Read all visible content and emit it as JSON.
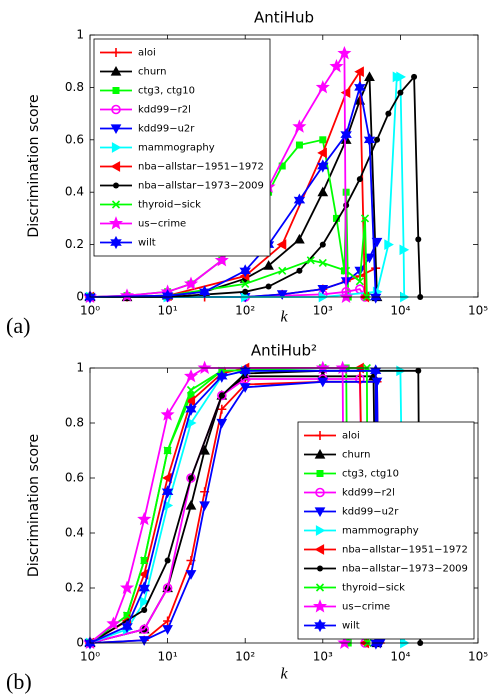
{
  "chart_data": [
    {
      "type": "line",
      "title": "AntiHub",
      "panel_label": "(a)",
      "xlabel": "k",
      "ylabel": "Discrimination score",
      "xlog": true,
      "xlim": [
        1,
        100000
      ],
      "xticks": [
        {
          "value": 1,
          "label": "10⁰"
        },
        {
          "value": 10,
          "label": "10¹"
        },
        {
          "value": 100,
          "label": "10²"
        },
        {
          "value": 1000,
          "label": "10³"
        },
        {
          "value": 10000,
          "label": "10⁴"
        },
        {
          "value": 100000,
          "label": "10⁵"
        }
      ],
      "ylim": [
        0,
        1
      ],
      "yticks": [
        0,
        0.2,
        0.4,
        0.6,
        0.8,
        1
      ],
      "legend": "upper-left",
      "series": [
        {
          "name": "aloi",
          "color": "#ff0000",
          "marker": "plus",
          "x": [
            1,
            3,
            10,
            30,
            100,
            300,
            1000,
            2000,
            3000,
            4800
          ],
          "values": [
            0,
            0,
            0,
            0,
            0,
            0.01,
            0.03,
            0.06,
            0.08,
            0.11
          ]
        },
        {
          "name": "churn",
          "color": "#000000",
          "marker": "triangle",
          "x": [
            1,
            3,
            10,
            30,
            100,
            200,
            500,
            1000,
            2000,
            3000,
            4000,
            5000
          ],
          "values": [
            0,
            0,
            0.005,
            0.02,
            0.07,
            0.12,
            0.22,
            0.4,
            0.6,
            0.75,
            0.84,
            0
          ]
        },
        {
          "name": "ctg3, ctg10",
          "color": "#00ff00",
          "marker": "square",
          "x": [
            1,
            3,
            10,
            20,
            50,
            100,
            200,
            300,
            500,
            1000,
            1500,
            1900,
            2000,
            2126
          ],
          "values": [
            0,
            0.005,
            0.02,
            0.05,
            0.14,
            0.26,
            0.4,
            0.5,
            0.58,
            0.6,
            0.3,
            0.1,
            0.4,
            0
          ]
        },
        {
          "name": "kdd99−r2l",
          "color": "#ff00ff",
          "marker": "circle",
          "x": [
            1,
            10,
            100,
            1000,
            2000,
            3000,
            3500
          ],
          "values": [
            0,
            0,
            0,
            0.01,
            0.02,
            0.03,
            0
          ]
        },
        {
          "name": "kdd99−u2r",
          "color": "#0000ff",
          "marker": "triangle-down",
          "x": [
            1,
            10,
            100,
            300,
            1000,
            2000,
            3000,
            4000,
            5000
          ],
          "values": [
            0,
            0,
            0,
            0.01,
            0.03,
            0.06,
            0.1,
            0.15,
            0.21
          ]
        },
        {
          "name": "mammography",
          "color": "#00ffff",
          "marker": "triangle-right",
          "x": [
            1,
            10,
            100,
            1000,
            5000,
            7000,
            9000,
            10000,
            11000,
            11183
          ],
          "values": [
            0,
            0,
            0,
            0,
            0.02,
            0.2,
            0.84,
            0.84,
            0.18,
            0
          ]
        },
        {
          "name": "nba−allstar−1951−1972",
          "color": "#ff0000",
          "marker": "triangle-left",
          "x": [
            1,
            10,
            100,
            300,
            1000,
            2000,
            3000,
            3500
          ],
          "values": [
            0,
            0.005,
            0.08,
            0.2,
            0.55,
            0.78,
            0.86,
            0
          ]
        },
        {
          "name": "nba−allstar−1973−2009",
          "color": "#000000",
          "marker": "dot",
          "x": [
            1,
            10,
            100,
            200,
            500,
            1000,
            2000,
            3000,
            5000,
            7000,
            10000,
            15000,
            17000,
            18000
          ],
          "values": [
            0,
            0,
            0.02,
            0.04,
            0.1,
            0.2,
            0.35,
            0.45,
            0.6,
            0.7,
            0.78,
            0.84,
            0.22,
            0
          ]
        },
        {
          "name": "thyroid−sick",
          "color": "#00ff00",
          "marker": "x",
          "x": [
            1,
            10,
            100,
            300,
            700,
            1000,
            2000,
            3000,
            3500,
            3700
          ],
          "values": [
            0,
            0.005,
            0.05,
            0.1,
            0.14,
            0.13,
            0.1,
            0.06,
            0.3,
            0
          ]
        },
        {
          "name": "us−crime",
          "color": "#ff00ff",
          "marker": "star",
          "x": [
            1,
            3,
            10,
            20,
            50,
            100,
            200,
            500,
            1000,
            1500,
            1900,
            1994
          ],
          "values": [
            0,
            0.005,
            0.02,
            0.05,
            0.14,
            0.26,
            0.42,
            0.65,
            0.8,
            0.88,
            0.93,
            0
          ]
        },
        {
          "name": "wilt",
          "color": "#0000ff",
          "marker": "hexagram",
          "x": [
            1,
            10,
            30,
            100,
            200,
            500,
            1000,
            2000,
            3000,
            4000,
            4800
          ],
          "values": [
            0,
            0.005,
            0.02,
            0.1,
            0.2,
            0.37,
            0.5,
            0.62,
            0.8,
            0.6,
            0
          ]
        }
      ]
    },
    {
      "type": "line",
      "title": "AntiHub²",
      "panel_label": "(b)",
      "xlabel": "k",
      "ylabel": "Discrimination score",
      "xlog": true,
      "xlim": [
        1,
        100000
      ],
      "xticks": [
        {
          "value": 1,
          "label": "10⁰"
        },
        {
          "value": 10,
          "label": "10¹"
        },
        {
          "value": 100,
          "label": "10²"
        },
        {
          "value": 1000,
          "label": "10³"
        },
        {
          "value": 10000,
          "label": "10⁴"
        },
        {
          "value": 100000,
          "label": "10⁵"
        }
      ],
      "ylim": [
        0,
        1
      ],
      "yticks": [
        0,
        0.2,
        0.4,
        0.6,
        0.8,
        1
      ],
      "legend": "lower-right",
      "series": [
        {
          "name": "aloi",
          "color": "#ff0000",
          "marker": "plus",
          "x": [
            1,
            5,
            10,
            20,
            30,
            50,
            100,
            1000,
            5000,
            5500
          ],
          "values": [
            0,
            0.01,
            0.08,
            0.3,
            0.55,
            0.85,
            0.94,
            0.95,
            0.95,
            0
          ]
        },
        {
          "name": "churn",
          "color": "#000000",
          "marker": "triangle",
          "x": [
            1,
            5,
            10,
            20,
            30,
            50,
            100,
            1000,
            4500,
            5000
          ],
          "values": [
            0,
            0.05,
            0.2,
            0.5,
            0.7,
            0.9,
            0.97,
            0.97,
            0.97,
            0
          ]
        },
        {
          "name": "ctg3, ctg10",
          "color": "#00ff00",
          "marker": "square",
          "x": [
            1,
            3,
            5,
            10,
            20,
            50,
            1000,
            2000,
            2126
          ],
          "values": [
            0,
            0.1,
            0.3,
            0.7,
            0.9,
            0.99,
            1,
            1,
            0
          ]
        },
        {
          "name": "kdd99−r2l",
          "color": "#ff00ff",
          "marker": "circle",
          "x": [
            1,
            5,
            10,
            20,
            50,
            100,
            1000,
            3000,
            3500
          ],
          "values": [
            0,
            0.05,
            0.2,
            0.6,
            0.9,
            0.96,
            0.96,
            0.96,
            0
          ]
        },
        {
          "name": "kdd99−u2r",
          "color": "#0000ff",
          "marker": "triangle-down",
          "x": [
            1,
            5,
            10,
            20,
            30,
            50,
            100,
            1000,
            5000,
            5500
          ],
          "values": [
            0,
            0.01,
            0.05,
            0.25,
            0.5,
            0.8,
            0.93,
            0.95,
            0.95,
            0
          ]
        },
        {
          "name": "mammography",
          "color": "#00ffff",
          "marker": "triangle-right",
          "x": [
            1,
            3,
            5,
            10,
            20,
            50,
            100,
            10000,
            11183
          ],
          "values": [
            0,
            0.05,
            0.15,
            0.5,
            0.8,
            0.97,
            0.99,
            0.99,
            0
          ]
        },
        {
          "name": "nba−allstar−1951−1972",
          "color": "#ff0000",
          "marker": "triangle-left",
          "x": [
            1,
            3,
            5,
            10,
            20,
            50,
            100,
            3000,
            3500
          ],
          "values": [
            0,
            0.08,
            0.25,
            0.6,
            0.88,
            0.98,
            1,
            1,
            0
          ]
        },
        {
          "name": "nba−allstar−1973−2009",
          "color": "#000000",
          "marker": "dot",
          "x": [
            1,
            5,
            10,
            20,
            50,
            100,
            1000,
            17000,
            18000
          ],
          "values": [
            0,
            0.12,
            0.3,
            0.6,
            0.9,
            0.98,
            0.99,
            0.99,
            0
          ]
        },
        {
          "name": "thyroid−sick",
          "color": "#00ff00",
          "marker": "x",
          "x": [
            1,
            3,
            5,
            10,
            20,
            50,
            1000,
            3700,
            3800
          ],
          "values": [
            0,
            0.1,
            0.3,
            0.7,
            0.92,
            0.99,
            1,
            1,
            0
          ]
        },
        {
          "name": "us−crime",
          "color": "#ff00ff",
          "marker": "star",
          "x": [
            1,
            2,
            3,
            5,
            10,
            20,
            30,
            1000,
            1800,
            1900
          ],
          "values": [
            0,
            0.07,
            0.2,
            0.45,
            0.83,
            0.97,
            1,
            1,
            1,
            0
          ]
        },
        {
          "name": "wilt",
          "color": "#0000ff",
          "marker": "hexagram",
          "x": [
            1,
            3,
            5,
            10,
            20,
            50,
            100,
            4800,
            4839
          ],
          "values": [
            0,
            0.06,
            0.2,
            0.55,
            0.85,
            0.97,
            0.99,
            0.99,
            0
          ]
        }
      ]
    }
  ]
}
